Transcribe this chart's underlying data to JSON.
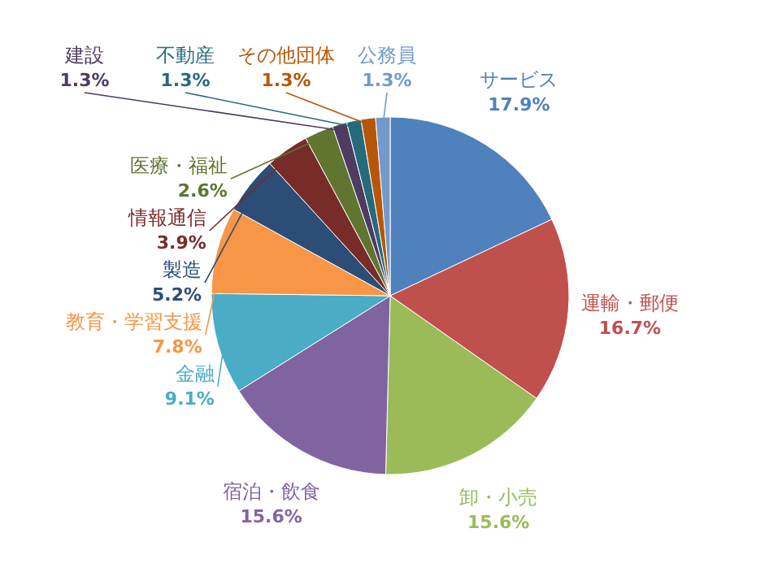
{
  "chart_data": {
    "type": "pie",
    "categories": [
      "サービス",
      "運輸・郵便",
      "卸・小売",
      "宿泊・飲食",
      "金融",
      "教育・学習支援",
      "製造",
      "情報通信",
      "医療・福祉",
      "建設",
      "不動産",
      "その他団体",
      "公務員"
    ],
    "values": [
      17.9,
      16.7,
      15.6,
      15.6,
      9.1,
      7.8,
      5.2,
      3.9,
      2.6,
      1.3,
      1.3,
      1.3,
      1.3
    ],
    "value_labels": [
      "17.9%",
      "16.7%",
      "15.6%",
      "15.6%",
      "9.1%",
      "7.8%",
      "5.2%",
      "3.9%",
      "2.6%",
      "1.3%",
      "1.3%",
      "1.3%",
      "1.3%"
    ],
    "colors": [
      "#4f81bd",
      "#c0504d",
      "#9bbb59",
      "#8064a2",
      "#4bacc6",
      "#f79646",
      "#2c4d75",
      "#772c2a",
      "#5f7530",
      "#4d3b62",
      "#276a7c",
      "#b65708",
      "#729aca"
    ]
  }
}
